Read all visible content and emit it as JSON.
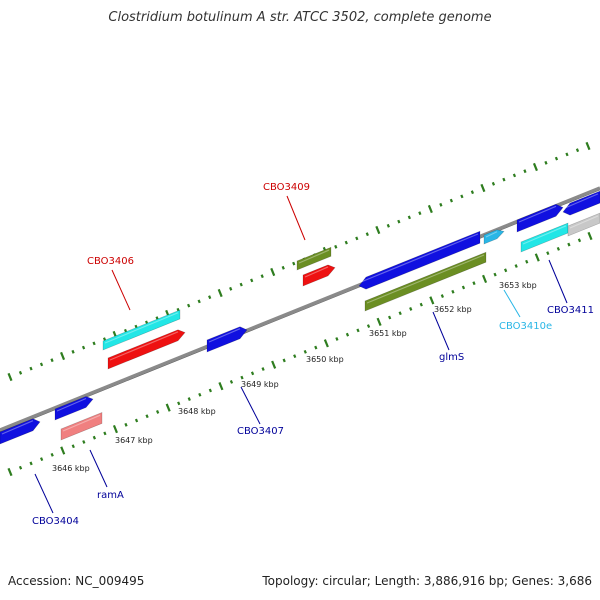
{
  "title": "Clostridium botulinum A str. ATCC 3502, complete genome",
  "footer": {
    "accession": "Accession: NC_009495",
    "summary": "Topology: circular; Length: 3,886,916 bp; Genes: 3,686"
  },
  "colors": {
    "backbone": "#8a8a8a",
    "ticks": "#2e7d1f",
    "cds_blue": "#1010e0",
    "cds_red": "#ee1111",
    "cyan": "#22e6e6",
    "olive": "#6b8e23",
    "pink": "#f08080",
    "skyblue": "#29b6e6",
    "grey": "#c8c8c8",
    "label_blue": "#000099",
    "label_red": "#cc0000"
  },
  "scale_labels": [
    "3646 kbp",
    "3647 kbp",
    "3648 kbp",
    "3649 kbp",
    "3650 kbp",
    "3651 kbp",
    "3652 kbp",
    "3653 kbp"
  ],
  "gene_labels": [
    {
      "id": "cbo3404",
      "text": "CBO3404",
      "color": "label_blue"
    },
    {
      "id": "rama",
      "text": "ramA",
      "color": "label_blue"
    },
    {
      "id": "cbo3406",
      "text": "CBO3406",
      "color": "label_red"
    },
    {
      "id": "cbo3407",
      "text": "CBO3407",
      "color": "label_blue"
    },
    {
      "id": "cbo3409",
      "text": "CBO3409",
      "color": "label_red"
    },
    {
      "id": "glms",
      "text": "glmS",
      "color": "label_blue"
    },
    {
      "id": "cbo3410e",
      "text": "CBO3410e",
      "color": "skyblue"
    },
    {
      "id": "cbo3411",
      "text": "CBO3411",
      "color": "label_blue"
    }
  ]
}
